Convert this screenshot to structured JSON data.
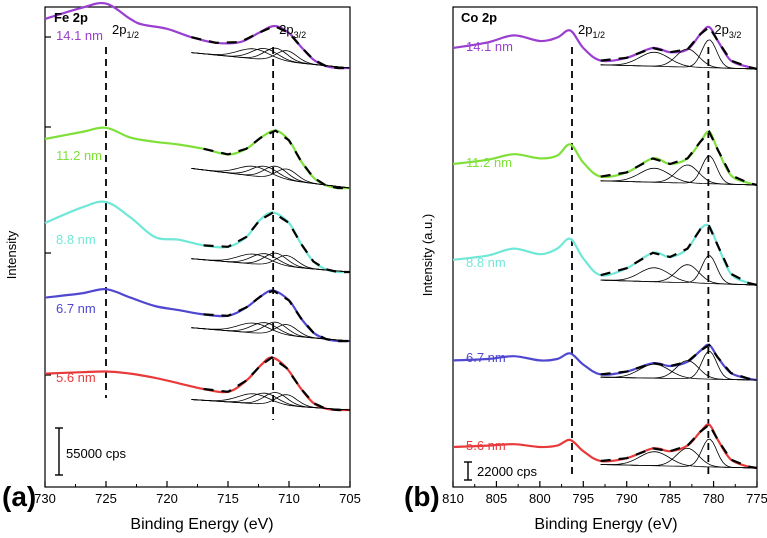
{
  "colors": {
    "14.1 nm": "#9a3fd0",
    "11.2 nm": "#7fe03a",
    "8.8 nm": "#6fe8d8",
    "6.7 nm": "#4f47d0",
    "5.6 nm": "#e83a3a",
    "fit": "#000000"
  },
  "chart_data": [
    {
      "type": "line",
      "panel": "(a)",
      "title": "Fe 2p",
      "xlabel": "Binding Energy (eV)",
      "ylabel": "Intensity",
      "xlim": [
        730,
        705
      ],
      "xticks": [
        730,
        725,
        720,
        715,
        710,
        705
      ],
      "x_tick_labels": [
        "730",
        "725",
        "720",
        "715",
        "710",
        "705"
      ],
      "peak_labels": [
        {
          "text": "2p",
          "sub": "1/2",
          "energy": 725.0
        },
        {
          "text": "2p",
          "sub": "3/2",
          "energy": 711.3
        }
      ],
      "scale_bar": "55000 cps",
      "peak_positions": {
        "2p1/2": 725.0,
        "2p3/2": 711.3
      },
      "series": [
        {
          "name": "14.1 nm",
          "label": "14.1 nm",
          "baseline_offset": 4,
          "pts": [
            [
              730,
              0.7
            ],
            [
              727,
              0.86
            ],
            [
              725,
              0.92
            ],
            [
              723,
              0.7
            ],
            [
              722,
              0.62
            ],
            [
              720,
              0.56
            ],
            [
              718,
              0.44
            ],
            [
              716,
              0.36
            ],
            [
              714,
              0.37
            ],
            [
              712.5,
              0.5
            ],
            [
              711.2,
              0.6
            ],
            [
              710,
              0.5
            ],
            [
              709,
              0.3
            ],
            [
              708,
              0.12
            ],
            [
              707,
              0.03
            ],
            [
              706,
              0
            ],
            [
              705,
              0
            ]
          ]
        },
        {
          "name": "11.2 nm",
          "label": "11.2 nm",
          "baseline_offset": 3,
          "pts": [
            [
              730,
              0.7
            ],
            [
              727,
              0.8
            ],
            [
              725,
              0.86
            ],
            [
              723,
              0.72
            ],
            [
              721,
              0.66
            ],
            [
              719,
              0.62
            ],
            [
              717,
              0.56
            ],
            [
              715,
              0.48
            ],
            [
              713.5,
              0.56
            ],
            [
              712.3,
              0.72
            ],
            [
              711.1,
              0.82
            ],
            [
              710,
              0.68
            ],
            [
              709,
              0.38
            ],
            [
              708,
              0.15
            ],
            [
              707,
              0.04
            ],
            [
              706,
              0
            ],
            [
              705,
              0
            ]
          ]
        },
        {
          "name": "8.8 nm",
          "label": "8.8 nm",
          "baseline_offset": 2,
          "pts": [
            [
              730,
              0.7
            ],
            [
              727,
              0.92
            ],
            [
              725,
              1.0
            ],
            [
              723,
              0.78
            ],
            [
              721,
              0.5
            ],
            [
              719,
              0.46
            ],
            [
              717,
              0.38
            ],
            [
              715,
              0.36
            ],
            [
              713.5,
              0.5
            ],
            [
              712.4,
              0.74
            ],
            [
              711.3,
              0.85
            ],
            [
              710,
              0.7
            ],
            [
              709,
              0.4
            ],
            [
              708,
              0.15
            ],
            [
              707,
              0.04
            ],
            [
              706,
              0
            ],
            [
              705,
              0
            ]
          ]
        },
        {
          "name": "6.7 nm",
          "label": "6.7 nm",
          "baseline_offset": 1,
          "pts": [
            [
              730,
              0.62
            ],
            [
              727,
              0.68
            ],
            [
              725,
              0.74
            ],
            [
              723,
              0.62
            ],
            [
              721,
              0.5
            ],
            [
              719,
              0.44
            ],
            [
              717,
              0.38
            ],
            [
              715,
              0.36
            ],
            [
              713.5,
              0.48
            ],
            [
              712.3,
              0.64
            ],
            [
              711.3,
              0.72
            ],
            [
              710,
              0.58
            ],
            [
              709,
              0.32
            ],
            [
              708,
              0.12
            ],
            [
              707,
              0.03
            ],
            [
              706,
              0
            ],
            [
              705,
              0
            ]
          ]
        },
        {
          "name": "5.6 nm",
          "label": "5.6 nm",
          "baseline_offset": 0,
          "pts": [
            [
              730,
              0.52
            ],
            [
              727,
              0.54
            ],
            [
              725,
              0.55
            ],
            [
              723,
              0.52
            ],
            [
              721,
              0.46
            ],
            [
              719,
              0.38
            ],
            [
              717,
              0.3
            ],
            [
              715,
              0.26
            ],
            [
              713.5,
              0.42
            ],
            [
              712.3,
              0.64
            ],
            [
              711.4,
              0.75
            ],
            [
              710.2,
              0.6
            ],
            [
              709,
              0.3
            ],
            [
              708,
              0.1
            ],
            [
              707,
              0.02
            ],
            [
              706,
              0
            ],
            [
              705,
              0
            ]
          ]
        }
      ],
      "fit_components": [
        {
          "center": 712.9,
          "amp": 0.14,
          "width": 1.8
        },
        {
          "center": 712.0,
          "amp": 0.16,
          "width": 1.5
        },
        {
          "center": 711.1,
          "amp": 0.18,
          "width": 1.3
        },
        {
          "center": 710.2,
          "amp": 0.16,
          "width": 1.2
        }
      ]
    },
    {
      "type": "line",
      "panel": "(b)",
      "title": "Co 2p",
      "xlabel": "Binding Energy (eV)",
      "ylabel": "Intensity (a.u.)",
      "xlim": [
        810,
        775
      ],
      "xticks": [
        810,
        805,
        800,
        795,
        790,
        785,
        780,
        775
      ],
      "x_tick_labels": [
        "810",
        "805",
        "800",
        "795",
        "790",
        "785",
        "780",
        "775"
      ],
      "peak_labels": [
        {
          "text": "2p",
          "sub": "1/2",
          "energy": 796.3
        },
        {
          "text": "2p",
          "sub": "3/2",
          "energy": 780.6
        }
      ],
      "scale_bar": "22000 cps",
      "peak_positions": {
        "2p1/2": 796.3,
        "2p3/2": 780.6
      },
      "series": [
        {
          "name": "14.1 nm",
          "label": "14.1 nm",
          "baseline_offset": 4,
          "pts": [
            [
              810,
              0.3
            ],
            [
              806,
              0.38
            ],
            [
              803,
              0.48
            ],
            [
              800,
              0.4
            ],
            [
              798,
              0.45
            ],
            [
              796.5,
              0.55
            ],
            [
              795,
              0.3
            ],
            [
              793,
              0.12
            ],
            [
              790,
              0.16
            ],
            [
              787,
              0.3
            ],
            [
              785,
              0.24
            ],
            [
              783,
              0.28
            ],
            [
              781.5,
              0.5
            ],
            [
              780.5,
              0.6
            ],
            [
              779.5,
              0.4
            ],
            [
              778,
              0.12
            ],
            [
              776,
              0.03
            ],
            [
              775,
              0
            ]
          ]
        },
        {
          "name": "11.2 nm",
          "label": "11.2 nm",
          "baseline_offset": 3,
          "pts": [
            [
              810,
              0.3
            ],
            [
              806,
              0.36
            ],
            [
              803,
              0.44
            ],
            [
              800,
              0.38
            ],
            [
              798,
              0.42
            ],
            [
              796.5,
              0.58
            ],
            [
              795,
              0.32
            ],
            [
              793,
              0.12
            ],
            [
              790,
              0.18
            ],
            [
              787,
              0.38
            ],
            [
              785,
              0.3
            ],
            [
              783,
              0.38
            ],
            [
              781.5,
              0.62
            ],
            [
              780.5,
              0.76
            ],
            [
              779.5,
              0.5
            ],
            [
              778,
              0.14
            ],
            [
              776,
              0.03
            ],
            [
              775,
              0
            ]
          ]
        },
        {
          "name": "8.8 nm",
          "label": "8.8 nm",
          "baseline_offset": 2,
          "pts": [
            [
              810,
              0.36
            ],
            [
              806,
              0.42
            ],
            [
              803,
              0.52
            ],
            [
              800,
              0.44
            ],
            [
              798,
              0.52
            ],
            [
              796.5,
              0.66
            ],
            [
              795,
              0.38
            ],
            [
              793,
              0.14
            ],
            [
              790,
              0.24
            ],
            [
              787,
              0.46
            ],
            [
              785,
              0.4
            ],
            [
              783,
              0.52
            ],
            [
              781.5,
              0.8
            ],
            [
              780.5,
              0.84
            ],
            [
              779.5,
              0.56
            ],
            [
              778,
              0.16
            ],
            [
              776,
              0.03
            ],
            [
              775,
              0
            ]
          ]
        },
        {
          "name": "6.7 nm",
          "label": "6.7 nm",
          "baseline_offset": 1,
          "pts": [
            [
              810,
              0.28
            ],
            [
              806,
              0.3
            ],
            [
              803,
              0.34
            ],
            [
              800,
              0.28
            ],
            [
              798,
              0.3
            ],
            [
              796.5,
              0.38
            ],
            [
              795,
              0.22
            ],
            [
              793,
              0.08
            ],
            [
              790,
              0.12
            ],
            [
              787,
              0.24
            ],
            [
              785,
              0.2
            ],
            [
              783,
              0.26
            ],
            [
              781.5,
              0.42
            ],
            [
              780.5,
              0.5
            ],
            [
              779.5,
              0.32
            ],
            [
              778,
              0.1
            ],
            [
              776,
              0.02
            ],
            [
              775,
              0
            ]
          ]
        },
        {
          "name": "5.6 nm",
          "label": "5.6 nm",
          "baseline_offset": 0,
          "pts": [
            [
              810,
              0.3
            ],
            [
              806,
              0.32
            ],
            [
              803,
              0.34
            ],
            [
              800,
              0.3
            ],
            [
              798,
              0.32
            ],
            [
              796.5,
              0.4
            ],
            [
              795,
              0.24
            ],
            [
              793,
              0.1
            ],
            [
              790,
              0.14
            ],
            [
              787,
              0.28
            ],
            [
              785,
              0.24
            ],
            [
              783,
              0.32
            ],
            [
              781.5,
              0.52
            ],
            [
              780.5,
              0.62
            ],
            [
              779.5,
              0.4
            ],
            [
              778,
              0.12
            ],
            [
              776,
              0.02
            ],
            [
              775,
              0
            ]
          ]
        }
      ],
      "fit_components": [
        {
          "center": 786.8,
          "amp": 0.2,
          "width": 2.4
        },
        {
          "center": 783.0,
          "amp": 0.26,
          "width": 1.8
        },
        {
          "center": 780.5,
          "amp": 0.4,
          "width": 1.2
        }
      ]
    }
  ]
}
